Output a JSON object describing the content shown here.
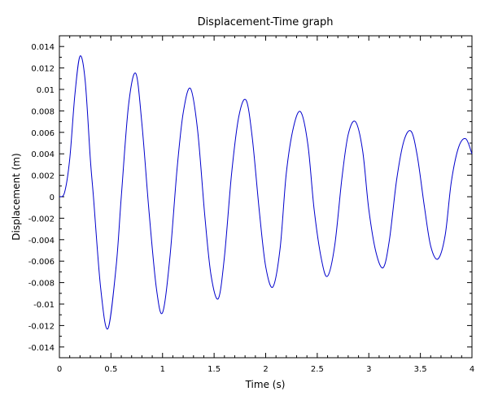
{
  "chart_data": {
    "type": "line",
    "title": "Displacement-Time graph",
    "xlabel": "Time (s)",
    "ylabel": "Displacement (m)",
    "xlim": [
      0,
      4
    ],
    "ylim": [
      -0.015,
      0.015
    ],
    "xticks": [
      0,
      0.5,
      1,
      1.5,
      2,
      2.5,
      3,
      3.5,
      4
    ],
    "xtick_labels": [
      "0",
      "0.5",
      "1",
      "1.5",
      "2",
      "2.5",
      "3",
      "3.5",
      "4"
    ],
    "yticks": [
      -0.014,
      -0.012,
      -0.01,
      -0.008,
      -0.006,
      -0.004,
      -0.002,
      0,
      0.002,
      0.004,
      0.006,
      0.008,
      0.01,
      0.012,
      0.014
    ],
    "ytick_labels": [
      "-0.014",
      "-0.012",
      "-0.01",
      "-0.008",
      "-0.006",
      "-0.004",
      "-0.002",
      "0",
      "0.002",
      "0.004",
      "0.006",
      "0.008",
      "0.01",
      "0.012",
      "0.014"
    ],
    "grid": false,
    "line_color": "#0000cc",
    "series": [
      {
        "name": "",
        "x": [
          0,
          0.05,
          0.1,
          0.15,
          0.2,
          0.25,
          0.3,
          0.33,
          0.4,
          0.47,
          0.55,
          0.6,
          0.67,
          0.74,
          0.8,
          0.87,
          0.94,
          1.0,
          1.07,
          1.14,
          1.2,
          1.27,
          1.34,
          1.41,
          1.47,
          1.54,
          1.6,
          1.67,
          1.74,
          1.81,
          1.87,
          1.94,
          2.0,
          2.07,
          2.14,
          2.2,
          2.27,
          2.34,
          2.41,
          2.47,
          2.54,
          2.6,
          2.67,
          2.74,
          2.8,
          2.87,
          2.94,
          3.0,
          3.07,
          3.14,
          3.2,
          3.27,
          3.34,
          3.41,
          3.47,
          3.54,
          3.6,
          3.67,
          3.74,
          3.8,
          3.87,
          3.94,
          4.0
        ],
        "y": [
          0,
          0.0004,
          0.0035,
          0.0095,
          0.0131,
          0.0108,
          0.0035,
          0,
          -0.0085,
          -0.0123,
          -0.0065,
          0,
          0.0085,
          0.0115,
          0.0068,
          -0.0015,
          -0.0085,
          -0.0108,
          -0.0058,
          0.0025,
          0.0078,
          0.0101,
          0.0062,
          -0.0018,
          -0.0073,
          -0.0095,
          -0.0056,
          0.0022,
          0.0075,
          0.009,
          0.0055,
          -0.0015,
          -0.0065,
          -0.0084,
          -0.0048,
          0.0022,
          0.0065,
          0.0079,
          0.0048,
          -0.0012,
          -0.0058,
          -0.0074,
          -0.0045,
          0.0018,
          0.0058,
          0.007,
          0.0043,
          -0.0012,
          -0.0052,
          -0.0066,
          -0.004,
          0.0016,
          0.0052,
          0.0061,
          0.0038,
          -0.001,
          -0.0046,
          -0.0058,
          -0.0036,
          0.0014,
          0.0046,
          0.0054,
          0.004
        ]
      }
    ]
  }
}
